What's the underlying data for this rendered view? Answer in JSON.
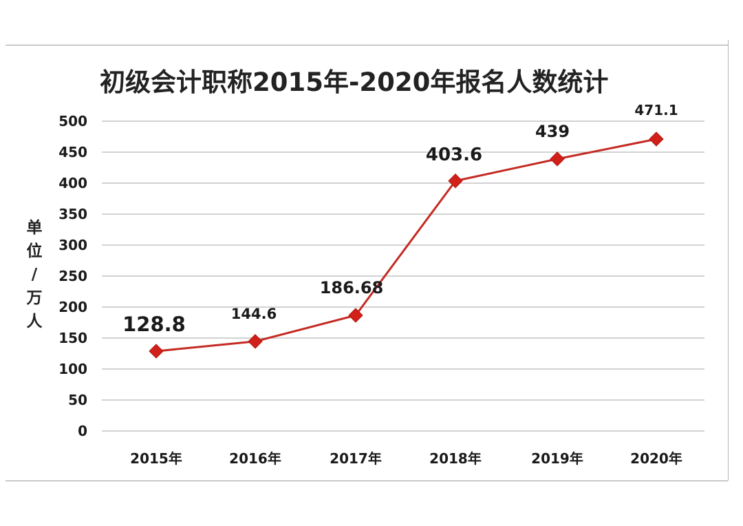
{
  "chart_data": {
    "type": "line",
    "title": "初级会计职称2015年-2020年报名人数统计",
    "xlabel": "",
    "ylabel": "单位/万人",
    "categories": [
      "2015年",
      "2016年",
      "2017年",
      "2018年",
      "2019年",
      "2020年"
    ],
    "series": [
      {
        "values": [
          128.8,
          144.6,
          186.68,
          403.6,
          439,
          471.1
        ]
      }
    ],
    "data_labels": [
      "128.8",
      "144.6",
      "186.68",
      "403.6",
      "439",
      "471.1"
    ],
    "yticks": [
      0,
      50,
      100,
      150,
      200,
      250,
      300,
      350,
      400,
      450,
      500
    ],
    "ylim": [
      0,
      500
    ],
    "grid": true,
    "legend": "none",
    "colors": {
      "line": "#c42a22",
      "marker": "#d11f1a",
      "grid": "#b8b8b8",
      "text": "#1a1a1a"
    }
  }
}
